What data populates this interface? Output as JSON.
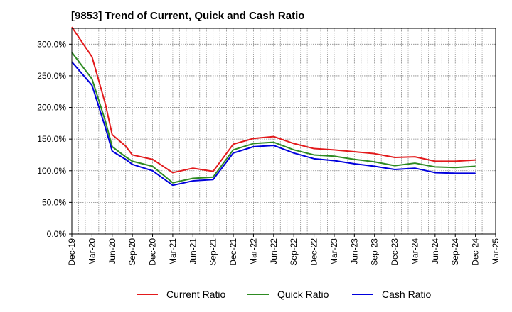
{
  "chart_data": {
    "type": "line",
    "title": "[9853]  Trend of Current, Quick and Cash Ratio",
    "xlabel": "",
    "ylabel": "",
    "ylim": [
      0,
      325
    ],
    "yticks": [
      0,
      50,
      100,
      150,
      200,
      250,
      300
    ],
    "ytick_labels": [
      "0.0%",
      "50.0%",
      "100.0%",
      "150.0%",
      "200.0%",
      "250.0%",
      "300.0%"
    ],
    "x_tick_labels": [
      "Dec-19",
      "Mar-20",
      "Jun-20",
      "Sep-20",
      "Dec-20",
      "Mar-21",
      "Jun-21",
      "Sep-21",
      "Dec-21",
      "Mar-22",
      "Jun-22",
      "Sep-22",
      "Dec-22",
      "Mar-23",
      "Jun-23",
      "Sep-23",
      "Dec-23",
      "Mar-24",
      "Jun-24",
      "Sep-24",
      "Dec-24",
      "Mar-25"
    ],
    "x_monthly_points": [
      0,
      3,
      5,
      6,
      8,
      9,
      12,
      15,
      18,
      21,
      24,
      27,
      30,
      33,
      36,
      39,
      42,
      45,
      48,
      51,
      54,
      57,
      60
    ],
    "grid": true,
    "legend_position": "bottom",
    "series": [
      {
        "name": "Current Ratio",
        "color": "#e31a1c",
        "values": [
          327,
          280,
          205,
          157,
          139,
          125,
          118,
          97,
          104,
          99,
          142,
          151,
          154,
          143,
          135,
          133,
          130,
          127,
          121,
          122,
          115,
          115,
          117
        ]
      },
      {
        "name": "Quick Ratio",
        "color": "#2e8b22",
        "values": [
          287,
          245,
          178,
          138,
          122,
          115,
          107,
          81,
          88,
          90,
          133,
          143,
          145,
          133,
          125,
          123,
          118,
          114,
          108,
          112,
          106,
          105,
          107
        ]
      },
      {
        "name": "Cash Ratio",
        "color": "#0000dd",
        "values": [
          272,
          235,
          168,
          131,
          118,
          110,
          100,
          77,
          84,
          86,
          128,
          138,
          140,
          128,
          119,
          116,
          111,
          107,
          102,
          104,
          97,
          96,
          96
        ]
      }
    ]
  }
}
